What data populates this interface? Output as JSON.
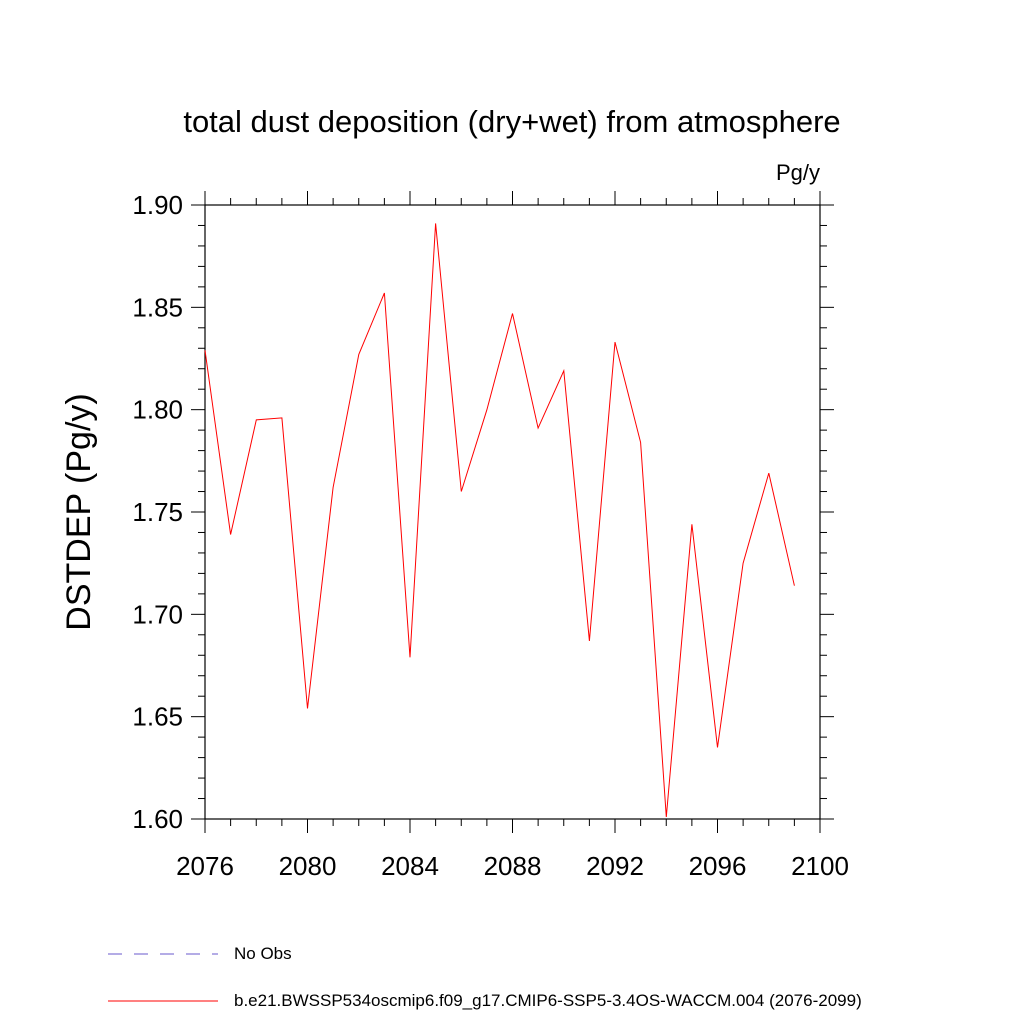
{
  "chart_data": {
    "type": "line",
    "title": "total dust deposition (dry+wet) from atmosphere",
    "units": "Pg/y",
    "ylabel": "DSTDEP  (Pg/y)",
    "xlabel": "",
    "xlim": [
      2076,
      2100
    ],
    "ylim": [
      1.6,
      1.9
    ],
    "x_ticks": [
      "2076",
      "2080",
      "2084",
      "2088",
      "2092",
      "2096",
      "2100"
    ],
    "y_ticks": [
      "1.60",
      "1.65",
      "1.70",
      "1.75",
      "1.80",
      "1.85",
      "1.90"
    ],
    "grid": false,
    "legend_position": "bottom",
    "series": [
      {
        "name": "b.e21.BWSSP534oscmip6.f09_g17.CMIP6-SSP5-3.4OS-WACCM.004 (2076-2099)",
        "color": "#ff0000",
        "style": "solid",
        "x": [
          2076,
          2077,
          2078,
          2079,
          2080,
          2081,
          2082,
          2083,
          2084,
          2085,
          2086,
          2087,
          2088,
          2089,
          2090,
          2091,
          2092,
          2093,
          2094,
          2095,
          2096,
          2097,
          2098,
          2099
        ],
        "y": [
          1.829,
          1.739,
          1.795,
          1.796,
          1.654,
          1.762,
          1.827,
          1.857,
          1.679,
          1.891,
          1.76,
          1.8,
          1.847,
          1.791,
          1.819,
          1.687,
          1.833,
          1.784,
          1.601,
          1.744,
          1.635,
          1.725,
          1.769,
          1.714
        ]
      }
    ],
    "legend": [
      {
        "label": "No Obs",
        "color": "#6a5acd",
        "style": "dashed"
      },
      {
        "label": "b.e21.BWSSP534oscmip6.f09_g17.CMIP6-SSP5-3.4OS-WACCM.004 (2076-2099)",
        "color": "#ff0000",
        "style": "solid"
      }
    ]
  }
}
